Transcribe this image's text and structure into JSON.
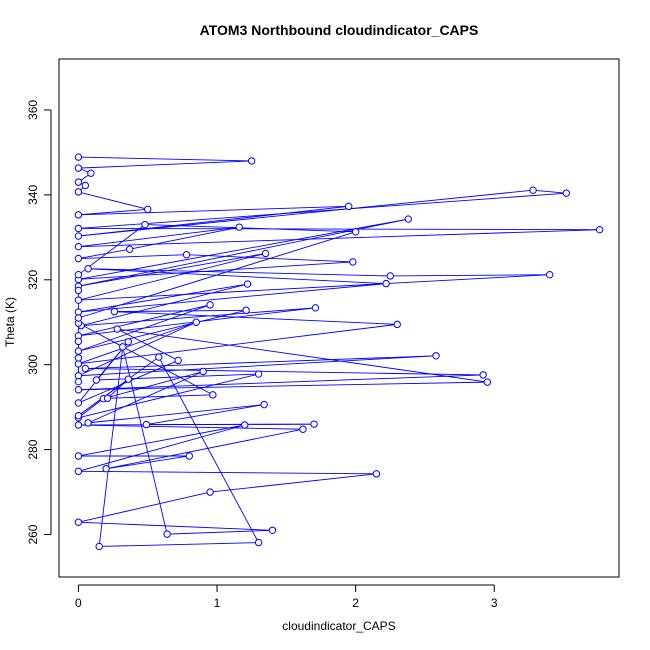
{
  "chart_data": {
    "type": "scatter",
    "title": "ATOM3 Northbound cloudindicator_CAPS",
    "xlabel": "cloudindicator_CAPS",
    "ylabel": "Theta (K)",
    "xlim": [
      -0.14,
      3.9
    ],
    "ylim": [
      250,
      372
    ],
    "x_ticks": [
      0,
      1,
      2,
      3
    ],
    "y_ticks": [
      260,
      280,
      300,
      320,
      340,
      360
    ],
    "x_tick_labels": [
      "0",
      "1",
      "2",
      "3"
    ],
    "y_tick_labels": [
      "260",
      "280",
      "300",
      "320",
      "340",
      "360"
    ],
    "color": "#0000ff",
    "marker": "open-circle",
    "connected": true,
    "points": [
      [
        0.0,
        348.9
      ],
      [
        1.25,
        348.0
      ],
      [
        0.0,
        346.3
      ],
      [
        0.09,
        345.1
      ],
      [
        0.0,
        343.0
      ],
      [
        0.05,
        342.2
      ],
      [
        0.0,
        340.7
      ],
      [
        0.5,
        336.6
      ],
      [
        0.0,
        335.3
      ],
      [
        1.95,
        337.3
      ],
      [
        0.0,
        330.3
      ],
      [
        3.28,
        341.1
      ],
      [
        3.52,
        340.4
      ],
      [
        0.0,
        332.1
      ],
      [
        3.76,
        331.8
      ],
      [
        0.0,
        327.8
      ],
      [
        1.16,
        332.4
      ],
      [
        0.37,
        327.2
      ],
      [
        0.0,
        325.0
      ],
      [
        0.78,
        325.9
      ],
      [
        1.98,
        324.2
      ],
      [
        0.0,
        320.1
      ],
      [
        2.38,
        334.3
      ],
      [
        0.0,
        318.5
      ],
      [
        1.35,
        326.2
      ],
      [
        0.0,
        315.2
      ],
      [
        3.4,
        321.2
      ],
      [
        2.25,
        320.9
      ],
      [
        0.07,
        322.6
      ],
      [
        2.22,
        319.1
      ],
      [
        0.0,
        312.4
      ],
      [
        1.22,
        319.0
      ],
      [
        0.02,
        309.2
      ],
      [
        1.71,
        313.4
      ],
      [
        0.0,
        306.8
      ],
      [
        0.95,
        314.1
      ],
      [
        0.0,
        303.2
      ],
      [
        1.21,
        312.8
      ],
      [
        0.26,
        312.5
      ],
      [
        2.3,
        309.5
      ],
      [
        0.0,
        300.2
      ],
      [
        0.85,
        310.0
      ],
      [
        0.0,
        297.4
      ],
      [
        2.58,
        302.1
      ],
      [
        0.05,
        299.1
      ],
      [
        2.92,
        297.6
      ],
      [
        0.0,
        294.1
      ],
      [
        2.95,
        295.9
      ],
      [
        0.28,
        308.4
      ],
      [
        0.72,
        301.0
      ],
      [
        0.0,
        291.0
      ],
      [
        0.36,
        305.4
      ],
      [
        0.13,
        296.4
      ],
      [
        1.3,
        297.8
      ],
      [
        0.0,
        287.5
      ],
      [
        0.18,
        292.0
      ],
      [
        0.9,
        298.4
      ],
      [
        0.07,
        286.3
      ],
      [
        1.34,
        290.6
      ],
      [
        0.49,
        285.9
      ],
      [
        1.7,
        286.0
      ],
      [
        0.0,
        285.8
      ],
      [
        1.62,
        284.8
      ],
      [
        0.2,
        275.5
      ],
      [
        0.8,
        278.5
      ],
      [
        0.0,
        278.5
      ],
      [
        1.2,
        285.8
      ],
      [
        0.0,
        274.9
      ],
      [
        2.15,
        274.3
      ],
      [
        0.95,
        270.0
      ],
      [
        0.0,
        262.9
      ],
      [
        1.4,
        261.0
      ],
      [
        0.64,
        260.1
      ],
      [
        0.32,
        304.2
      ],
      [
        0.15,
        257.2
      ],
      [
        1.3,
        258.1
      ],
      [
        0.58,
        301.8
      ],
      [
        0.0,
        288.0
      ],
      [
        0.36,
        296.6
      ],
      [
        0.21,
        292.1
      ],
      [
        0.97,
        292.9
      ],
      [
        0.0,
        309.8
      ],
      [
        0.0,
        317.5
      ],
      [
        0.0,
        321.2
      ],
      [
        0.48,
        333.0
      ],
      [
        2.0,
        331.3
      ],
      [
        0.0,
        311.0
      ],
      [
        0.0,
        301.6
      ],
      [
        0.0,
        296.0
      ],
      [
        0.0,
        305.5
      ]
    ]
  }
}
